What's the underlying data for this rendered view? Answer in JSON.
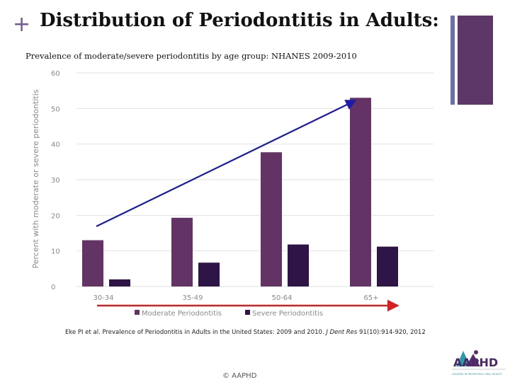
{
  "slide": {
    "plus": "+",
    "title": "Distribution of Periodontitis in Adults:",
    "subtitle": "Prevalence of moderate/severe periodontitis by age group: NHANES 2009-2010",
    "citation_main": "Eke PI et al. Prevalence of Periodontitis in Adults in the United States: 2009 and 2010.",
    "citation_journal": "J Dent Res",
    "citation_tail": "91(10):914-920, 2012",
    "copyright": "© AAPHD",
    "logo_text": "AAPHD",
    "logo_tagline": "LEADERS IN PROMOTING ORAL HEALTH"
  },
  "colors": {
    "moderate": "#633366",
    "severe": "#2e1447",
    "trend_arrow": "#1c1ca8",
    "age_arrow": "#d92020",
    "accent": "#5d3866"
  },
  "chart_data": {
    "type": "bar",
    "categories": [
      "30-34",
      "35-49",
      "50-64",
      "65+"
    ],
    "series": [
      {
        "name": "Moderate Periodontitis",
        "values": [
          13,
          19.3,
          37.7,
          53
        ]
      },
      {
        "name": "Severe Periodontitis",
        "values": [
          2,
          6.7,
          11.8,
          11.2
        ]
      }
    ],
    "yticks": [
      0,
      10,
      20,
      30,
      40,
      50,
      60
    ],
    "ylim": [
      0,
      60
    ],
    "ylabel": "Percent with moderate or severe periodontitis",
    "xlabel": "",
    "grid": true,
    "legend_position": "bottom"
  }
}
